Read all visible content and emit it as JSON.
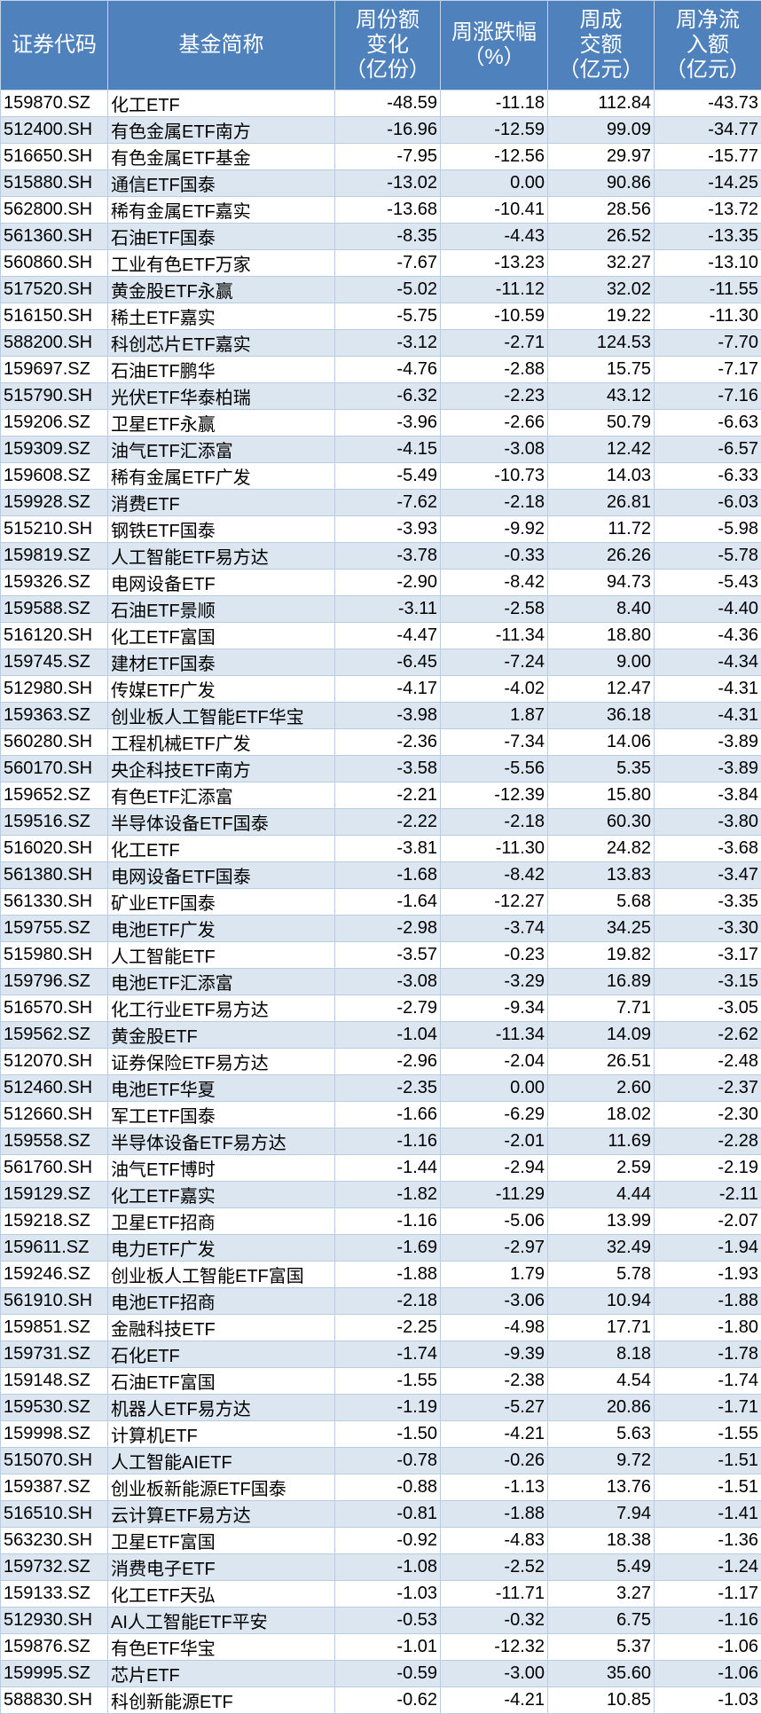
{
  "colors": {
    "header_bg": "#4f81bd",
    "header_text": "#ffffff",
    "stripe": "#dce6f1"
  },
  "headers": [
    [
      "证券代码"
    ],
    [
      "基金简称"
    ],
    [
      "周份额",
      "变化",
      "（亿份）"
    ],
    [
      "周涨跌幅",
      "（%）"
    ],
    [
      "周成",
      "交额",
      "（亿元）"
    ],
    [
      "周净流",
      "入额",
      "（亿元）"
    ]
  ],
  "rows": [
    [
      "159870.SZ",
      "化工ETF",
      "-48.59",
      "-11.18",
      "112.84",
      "-43.73"
    ],
    [
      "512400.SH",
      "有色金属ETF南方",
      "-16.96",
      "-12.59",
      "99.09",
      "-34.77"
    ],
    [
      "516650.SH",
      "有色金属ETF基金",
      "-7.95",
      "-12.56",
      "29.97",
      "-15.77"
    ],
    [
      "515880.SH",
      "通信ETF国泰",
      "-13.02",
      "0.00",
      "90.86",
      "-14.25"
    ],
    [
      "562800.SH",
      "稀有金属ETF嘉实",
      "-13.68",
      "-10.41",
      "28.56",
      "-13.72"
    ],
    [
      "561360.SH",
      "石油ETF国泰",
      "-8.35",
      "-4.43",
      "26.52",
      "-13.35"
    ],
    [
      "560860.SH",
      "工业有色ETF万家",
      "-7.67",
      "-13.23",
      "32.27",
      "-13.10"
    ],
    [
      "517520.SH",
      "黄金股ETF永赢",
      "-5.02",
      "-11.12",
      "32.02",
      "-11.55"
    ],
    [
      "516150.SH",
      "稀土ETF嘉实",
      "-5.75",
      "-10.59",
      "19.22",
      "-11.30"
    ],
    [
      "588200.SH",
      "科创芯片ETF嘉实",
      "-3.12",
      "-2.71",
      "124.53",
      "-7.70"
    ],
    [
      "159697.SZ",
      "石油ETF鹏华",
      "-4.76",
      "-2.88",
      "15.75",
      "-7.17"
    ],
    [
      "515790.SH",
      "光伏ETF华泰柏瑞",
      "-6.32",
      "-2.23",
      "43.12",
      "-7.16"
    ],
    [
      "159206.SZ",
      "卫星ETF永赢",
      "-3.96",
      "-2.66",
      "50.79",
      "-6.63"
    ],
    [
      "159309.SZ",
      "油气ETF汇添富",
      "-4.15",
      "-3.08",
      "12.42",
      "-6.57"
    ],
    [
      "159608.SZ",
      "稀有金属ETF广发",
      "-5.49",
      "-10.73",
      "14.03",
      "-6.33"
    ],
    [
      "159928.SZ",
      "消费ETF",
      "-7.62",
      "-2.18",
      "26.81",
      "-6.03"
    ],
    [
      "515210.SH",
      "钢铁ETF国泰",
      "-3.93",
      "-9.92",
      "11.72",
      "-5.98"
    ],
    [
      "159819.SZ",
      "人工智能ETF易方达",
      "-3.78",
      "-0.33",
      "26.26",
      "-5.78"
    ],
    [
      "159326.SZ",
      "电网设备ETF",
      "-2.90",
      "-8.42",
      "94.73",
      "-5.43"
    ],
    [
      "159588.SZ",
      "石油ETF景顺",
      "-3.11",
      "-2.58",
      "8.40",
      "-4.40"
    ],
    [
      "516120.SH",
      "化工ETF富国",
      "-4.47",
      "-11.34",
      "18.80",
      "-4.36"
    ],
    [
      "159745.SZ",
      "建材ETF国泰",
      "-6.45",
      "-7.24",
      "9.00",
      "-4.34"
    ],
    [
      "512980.SH",
      "传媒ETF广发",
      "-4.17",
      "-4.02",
      "12.47",
      "-4.31"
    ],
    [
      "159363.SZ",
      "创业板人工智能ETF华宝",
      "-3.98",
      "1.87",
      "36.18",
      "-4.31"
    ],
    [
      "560280.SH",
      "工程机械ETF广发",
      "-2.36",
      "-7.34",
      "14.06",
      "-3.89"
    ],
    [
      "560170.SH",
      "央企科技ETF南方",
      "-3.58",
      "-5.56",
      "5.35",
      "-3.89"
    ],
    [
      "159652.SZ",
      "有色ETF汇添富",
      "-2.21",
      "-12.39",
      "15.80",
      "-3.84"
    ],
    [
      "159516.SZ",
      "半导体设备ETF国泰",
      "-2.22",
      "-2.18",
      "60.30",
      "-3.80"
    ],
    [
      "516020.SH",
      "化工ETF",
      "-3.81",
      "-11.30",
      "24.82",
      "-3.68"
    ],
    [
      "561380.SH",
      "电网设备ETF国泰",
      "-1.68",
      "-8.42",
      "13.83",
      "-3.47"
    ],
    [
      "561330.SH",
      "矿业ETF国泰",
      "-1.64",
      "-12.27",
      "5.68",
      "-3.35"
    ],
    [
      "159755.SZ",
      "电池ETF广发",
      "-2.98",
      "-3.74",
      "34.25",
      "-3.30"
    ],
    [
      "515980.SH",
      "人工智能ETF",
      "-3.57",
      "-0.23",
      "19.82",
      "-3.17"
    ],
    [
      "159796.SZ",
      "电池ETF汇添富",
      "-3.08",
      "-3.29",
      "16.89",
      "-3.15"
    ],
    [
      "516570.SH",
      "化工行业ETF易方达",
      "-2.79",
      "-9.34",
      "7.71",
      "-3.05"
    ],
    [
      "159562.SZ",
      "黄金股ETF",
      "-1.04",
      "-11.34",
      "14.09",
      "-2.62"
    ],
    [
      "512070.SH",
      "证券保险ETF易方达",
      "-2.96",
      "-2.04",
      "26.51",
      "-2.48"
    ],
    [
      "512460.SH",
      "电池ETF华夏",
      "-2.35",
      "0.00",
      "2.60",
      "-2.37"
    ],
    [
      "512660.SH",
      "军工ETF国泰",
      "-1.66",
      "-6.29",
      "18.02",
      "-2.30"
    ],
    [
      "159558.SZ",
      "半导体设备ETF易方达",
      "-1.16",
      "-2.01",
      "11.69",
      "-2.28"
    ],
    [
      "561760.SH",
      "油气ETF博时",
      "-1.44",
      "-2.94",
      "2.59",
      "-2.19"
    ],
    [
      "159129.SZ",
      "化工ETF嘉实",
      "-1.82",
      "-11.29",
      "4.44",
      "-2.11"
    ],
    [
      "159218.SZ",
      "卫星ETF招商",
      "-1.16",
      "-5.06",
      "13.99",
      "-2.07"
    ],
    [
      "159611.SZ",
      "电力ETF广发",
      "-1.69",
      "-2.97",
      "32.49",
      "-1.94"
    ],
    [
      "159246.SZ",
      "创业板人工智能ETF富国",
      "-1.88",
      "1.79",
      "5.78",
      "-1.93"
    ],
    [
      "561910.SH",
      "电池ETF招商",
      "-2.18",
      "-3.06",
      "10.94",
      "-1.88"
    ],
    [
      "159851.SZ",
      "金融科技ETF",
      "-2.25",
      "-4.98",
      "17.71",
      "-1.80"
    ],
    [
      "159731.SZ",
      "石化ETF",
      "-1.74",
      "-9.39",
      "8.18",
      "-1.78"
    ],
    [
      "159148.SZ",
      "石油ETF富国",
      "-1.55",
      "-2.38",
      "4.54",
      "-1.74"
    ],
    [
      "159530.SZ",
      "机器人ETF易方达",
      "-1.19",
      "-5.27",
      "20.86",
      "-1.71"
    ],
    [
      "159998.SZ",
      "计算机ETF",
      "-1.50",
      "-4.21",
      "5.63",
      "-1.55"
    ],
    [
      "515070.SH",
      "人工智能AIETF",
      "-0.78",
      "-0.26",
      "9.72",
      "-1.51"
    ],
    [
      "159387.SZ",
      "创业板新能源ETF国泰",
      "-0.88",
      "-1.13",
      "13.76",
      "-1.51"
    ],
    [
      "516510.SH",
      "云计算ETF易方达",
      "-0.81",
      "-1.88",
      "7.94",
      "-1.41"
    ],
    [
      "563230.SH",
      "卫星ETF富国",
      "-0.92",
      "-4.83",
      "18.38",
      "-1.36"
    ],
    [
      "159732.SZ",
      "消费电子ETF",
      "-1.08",
      "-2.52",
      "5.49",
      "-1.24"
    ],
    [
      "159133.SZ",
      "化工ETF天弘",
      "-1.03",
      "-11.71",
      "3.27",
      "-1.17"
    ],
    [
      "512930.SH",
      "AI人工智能ETF平安",
      "-0.53",
      "-0.32",
      "6.75",
      "-1.16"
    ],
    [
      "159876.SZ",
      "有色ETF华宝",
      "-1.01",
      "-12.32",
      "5.37",
      "-1.06"
    ],
    [
      "159995.SZ",
      "芯片ETF",
      "-0.59",
      "-3.00",
      "35.60",
      "-1.06"
    ],
    [
      "588830.SH",
      "科创新能源ETF",
      "-0.62",
      "-4.21",
      "10.85",
      "-1.03"
    ]
  ]
}
